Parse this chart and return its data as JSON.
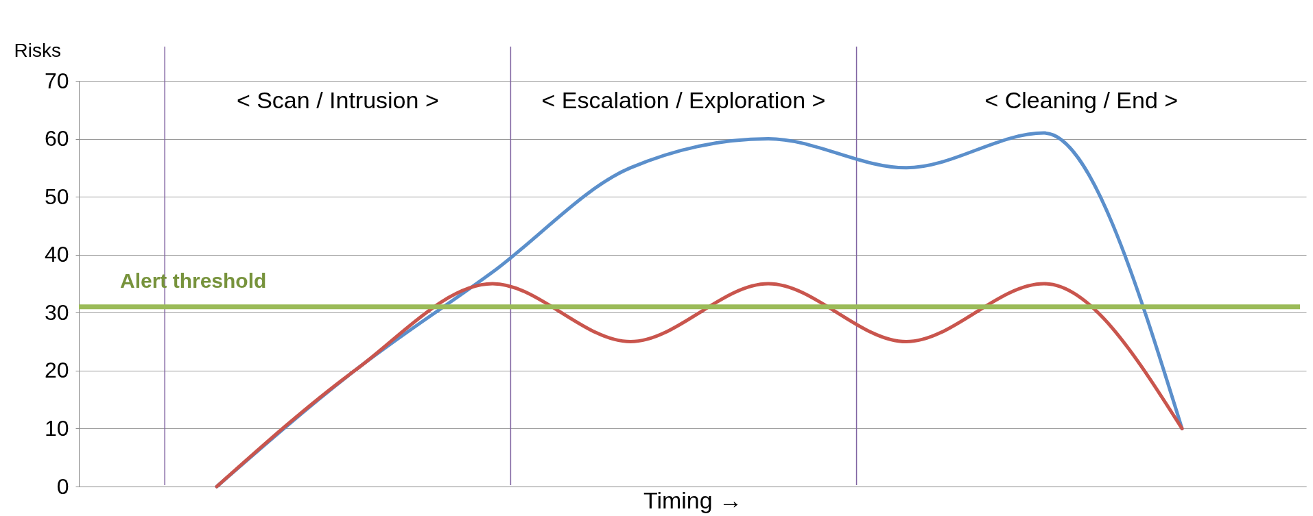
{
  "chart_data": {
    "type": "line",
    "ylabel": "Risks",
    "xlabel": "Timing →",
    "categories": [
      null,
      null,
      null,
      null,
      null,
      null,
      null,
      null
    ],
    "tick_labels": "y",
    "ylim": [
      0,
      70
    ],
    "yticks": [
      0,
      10,
      20,
      30,
      40,
      50,
      60,
      70
    ],
    "grid": "y",
    "legend": false,
    "marker": "none",
    "line_style": "solid",
    "series": [
      {
        "color": "#5b8fcb",
        "values": [
          0,
          20,
          37,
          55,
          60,
          55,
          61,
          10
        ]
      },
      {
        "color": "#c9554d",
        "values": [
          0,
          20,
          35,
          25,
          35,
          25,
          35,
          10
        ]
      }
    ],
    "ref_lines": [
      {
        "axis": "y",
        "value": 31,
        "label": "Alert threshold",
        "color": "#9bbb59"
      }
    ],
    "annotations": [
      "< Scan / Intrusion >",
      "< Escalation / Exploration >",
      "< Cleaning / End >"
    ]
  }
}
